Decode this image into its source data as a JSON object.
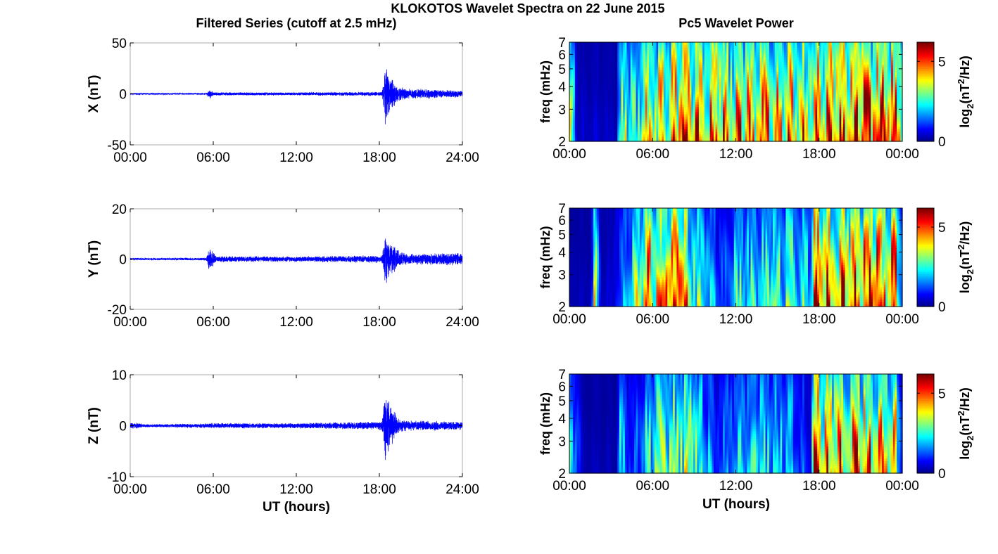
{
  "figure": {
    "title": "KLOKOTOS Wavelet Spectra on 22 June 2015",
    "left_title": "Filtered Series (cutoff at 2.5 mHz)",
    "right_title": "Pc5 Wavelet Power",
    "xlabel": "UT (hours)"
  },
  "colors": {
    "trace": "#0000ff",
    "axes": "#000000",
    "frame": "#aaaaaa",
    "jet": [
      "#00008f",
      "#0000ff",
      "#00ffff",
      "#ffff00",
      "#ff0000",
      "#800000"
    ]
  },
  "chart_data": [
    {
      "type": "line",
      "component": "X",
      "ylabel": "X (nT)",
      "xlim": [
        0,
        24
      ],
      "ylim": [
        -50,
        50
      ],
      "yticks": [
        -50,
        0,
        50
      ],
      "ytick_labels": [
        "-50",
        "0",
        "50"
      ],
      "xticks": [
        0,
        6,
        12,
        18,
        24
      ],
      "xtick_labels": [
        "00:00",
        "06:00",
        "12:00",
        "18:00",
        "24:00"
      ],
      "baseline_amplitude": 0.8,
      "bursts": [
        {
          "t": 5.7,
          "amp": 4,
          "width": 0.1
        },
        {
          "t": 18.5,
          "amp": 34,
          "width": 0.25
        },
        {
          "t": 18.9,
          "amp": 15,
          "width": 0.5
        },
        {
          "t": 20.5,
          "amp": 4,
          "width": 3.5
        }
      ],
      "series_envelope": {
        "t": [
          0,
          5.5,
          5.8,
          6,
          12,
          18.2,
          18.45,
          18.7,
          19.3,
          20,
          24
        ],
        "amp": [
          0.8,
          0.8,
          5,
          1.5,
          1.5,
          2,
          32,
          18,
          8,
          5,
          3
        ]
      }
    },
    {
      "type": "line",
      "component": "Y",
      "ylabel": "Y (nT)",
      "xlim": [
        0,
        24
      ],
      "ylim": [
        -20,
        20
      ],
      "yticks": [
        -20,
        0,
        20
      ],
      "ytick_labels": [
        "-20",
        "0",
        "20"
      ],
      "xticks": [
        0,
        6,
        12,
        18,
        24
      ],
      "xtick_labels": [
        "00:00",
        "06:00",
        "12:00",
        "18:00",
        "24:00"
      ],
      "series_envelope": {
        "t": [
          0,
          5.5,
          5.7,
          6.2,
          12,
          18.2,
          18.45,
          18.8,
          19.4,
          20,
          24
        ],
        "amp": [
          0.4,
          0.5,
          5,
          1.2,
          1,
          1.5,
          10,
          6,
          3.5,
          2,
          2.5
        ]
      }
    },
    {
      "type": "line",
      "component": "Z",
      "ylabel": "Z (nT)",
      "xlim": [
        0,
        24
      ],
      "ylim": [
        -10,
        10
      ],
      "yticks": [
        -10,
        0,
        10
      ],
      "ytick_labels": [
        "-10",
        "0",
        "10"
      ],
      "xticks": [
        0,
        6,
        12,
        18,
        24
      ],
      "xtick_labels": [
        "00:00",
        "06:00",
        "12:00",
        "18:00",
        "24:00"
      ],
      "series_envelope": {
        "t": [
          0,
          0.3,
          1,
          5,
          6,
          12,
          18.2,
          18.45,
          18.8,
          19.4,
          20,
          24
        ],
        "amp": [
          0.6,
          0.6,
          0.3,
          0.4,
          0.5,
          0.5,
          0.8,
          8,
          4,
          1.5,
          1,
          0.8
        ]
      }
    },
    {
      "type": "heatmap",
      "component": "X",
      "ylabel": "freq (mHz)",
      "xlim": [
        0,
        24
      ],
      "ylim": [
        2,
        7
      ],
      "yscale": "log",
      "yticks": [
        2,
        3,
        4,
        5,
        6,
        7
      ],
      "ytick_labels": [
        "2",
        "3",
        "4",
        "5",
        "6",
        "7"
      ],
      "xticks": [
        0,
        6,
        12,
        18,
        24
      ],
      "xtick_labels": [
        "00:00",
        "06:00",
        "12:00",
        "18:00",
        "00:00"
      ],
      "colorbar": {
        "label": "log2(nT2/Hz)",
        "range": [
          0,
          6.2
        ],
        "ticks": [
          0,
          5
        ],
        "tick_labels": [
          "0",
          "5"
        ]
      },
      "activity": {
        "t": [
          0,
          0.3,
          0.6,
          2,
          3.4,
          3.6,
          5,
          5.5,
          8,
          12,
          17,
          17.4,
          17.5,
          24
        ],
        "level": [
          5.5,
          3,
          0.5,
          0.5,
          0.3,
          4,
          3,
          5,
          6,
          5.5,
          6,
          6.2,
          6.5,
          6.5
        ]
      }
    },
    {
      "type": "heatmap",
      "component": "Y",
      "ylabel": "freq (mHz)",
      "xlim": [
        0,
        24
      ],
      "ylim": [
        2,
        7
      ],
      "yscale": "log",
      "yticks": [
        2,
        3,
        4,
        5,
        6,
        7
      ],
      "ytick_labels": [
        "2",
        "3",
        "4",
        "5",
        "6",
        "7"
      ],
      "xticks": [
        0,
        6,
        12,
        18,
        24
      ],
      "xtick_labels": [
        "00:00",
        "06:00",
        "12:00",
        "18:00",
        "00:00"
      ],
      "colorbar": {
        "label": "log2(nT2/Hz)",
        "range": [
          0,
          6.2
        ],
        "ticks": [
          0,
          5
        ],
        "tick_labels": [
          "0",
          "5"
        ]
      },
      "activity": {
        "t": [
          0,
          1.5,
          1.9,
          2.3,
          3,
          4.5,
          5.5,
          8,
          9.5,
          11,
          12,
          14,
          16,
          17.4,
          17.6,
          23.5,
          24
        ],
        "level": [
          0.3,
          0.3,
          5,
          0.5,
          0.5,
          3,
          6,
          6,
          3,
          1.5,
          3,
          3.2,
          3.5,
          3,
          6.5,
          6.5,
          3
        ]
      }
    },
    {
      "type": "heatmap",
      "component": "Z",
      "ylabel": "freq (mHz)",
      "xlim": [
        0,
        24
      ],
      "ylim": [
        2,
        7
      ],
      "yscale": "log",
      "yticks": [
        2,
        3,
        4,
        5,
        6,
        7
      ],
      "ytick_labels": [
        "2",
        "3",
        "4",
        "5",
        "6",
        "7"
      ],
      "xticks": [
        0,
        6,
        12,
        18,
        24
      ],
      "xtick_labels": [
        "00:00",
        "06:00",
        "12:00",
        "18:00",
        "00:00"
      ],
      "colorbar": {
        "label": "log2(nT2/Hz)",
        "range": [
          0,
          6.2
        ],
        "ticks": [
          0,
          5
        ],
        "tick_labels": [
          "0",
          "5"
        ]
      },
      "activity": {
        "t": [
          0,
          0.5,
          1,
          3.4,
          3.6,
          4.5,
          5.5,
          7,
          9,
          10.5,
          12,
          14,
          16,
          17.4,
          17.6,
          23.5,
          24
        ],
        "level": [
          3.5,
          2,
          0.3,
          0.3,
          3,
          1,
          3,
          4.2,
          4,
          1.5,
          2.5,
          3,
          2.5,
          1,
          6.2,
          5.5,
          1.5
        ]
      }
    }
  ]
}
